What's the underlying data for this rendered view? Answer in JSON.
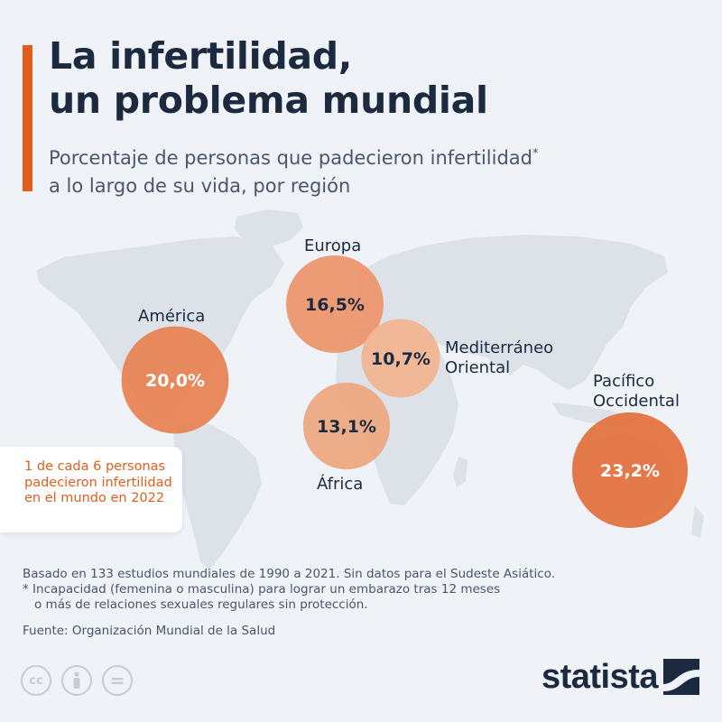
{
  "header": {
    "title_line1": "La infertilidad,",
    "title_line2": "un problema mundial",
    "subtitle_line1": "Porcentaje de personas que padecieron infertilidad",
    "subtitle_asterisk": "*",
    "subtitle_line2": "a lo largo de su vida, por región"
  },
  "chart_data": {
    "type": "bubble-map",
    "title": "La infertilidad, un problema mundial",
    "subtitle": "Porcentaje de personas que padecieron infertilidad* a lo largo de su vida, por región",
    "unit": "%",
    "regions": [
      {
        "name": "América",
        "value": 20.0,
        "label": "20,0%"
      },
      {
        "name": "Europa",
        "value": 16.5,
        "label": "16,5%"
      },
      {
        "name": "Mediterráneo Oriental",
        "value": 10.7,
        "label": "10,7%"
      },
      {
        "name": "África",
        "value": 13.1,
        "label": "13,1%"
      },
      {
        "name": "Pacífico Occidental",
        "value": 23.2,
        "label": "23,2%"
      }
    ]
  },
  "region_labels": {
    "america": "América",
    "europa": "Europa",
    "mediterraneo_line1": "Mediterráneo",
    "mediterraneo_line2": "Oriental",
    "africa": "África",
    "pacifico_line1": "Pacífico",
    "pacifico_line2": "Occidental"
  },
  "callout": {
    "text": "1 de cada 6 personas padecieron infertilidad en el mundo en 2022"
  },
  "notes": {
    "basis": "Basado en 133 estudios mundiales de 1990 a 2021. Sin datos para el Sudeste Asiático.",
    "footnote_line1": "* Incapacidad (femenina o masculina) para lograr un embarazo tras 12 meses",
    "footnote_line2": "o más de relaciones sexuales regulares sin protección.",
    "source": "Fuente: Organización Mundial de la Salud"
  },
  "license_icons": [
    "cc-icon",
    "by-person-icon",
    "nd-equals-icon"
  ],
  "license_glyphs": {
    "cc": "cc",
    "nd": "="
  },
  "brand": {
    "name": "statista"
  },
  "colors": {
    "background": "#eff2f7",
    "accent": "#e25d1c",
    "title": "#1b2a3e",
    "map_land": "#dde1e8",
    "bubble_dark": "#e36f3a",
    "bubble_light": "#f1b48f"
  }
}
